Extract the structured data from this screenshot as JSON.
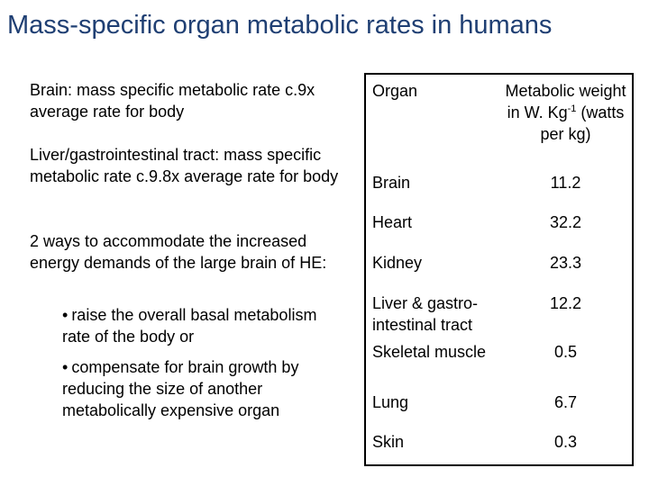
{
  "title": "Mass-specific organ metabolic rates in humans",
  "left": {
    "p1": "Brain: mass specific metabolic rate c.9x average rate for body",
    "p2": "Liver/gastrointestinal tract: mass specific metabolic rate c.9.8x average rate for body",
    "p3": "2 ways to accommodate the increased energy demands of the large brain of HE:",
    "bullets": [
      "raise the overall basal metabolism rate of the body or",
      "compensate for brain growth by reducing the size of another metabolically expensive organ"
    ],
    "bullet_glyph": "•"
  },
  "table": {
    "header_organ": "Organ",
    "header_value_a": "Metabolic weight in W. Kg",
    "header_value_sup": "-1",
    "header_value_b": " (watts per kg)",
    "rows": [
      {
        "organ": "Brain",
        "value": "11.2"
      },
      {
        "organ": "Heart",
        "value": "32.2"
      },
      {
        "organ": "Kidney",
        "value": "23.3"
      },
      {
        "organ": "Liver & gastro-intestinal tract",
        "value": "12.2"
      },
      {
        "organ": "Skeletal muscle",
        "value": "0.5"
      },
      {
        "organ": "Lung",
        "value": "6.7"
      },
      {
        "organ": "Skin",
        "value": "0.3"
      }
    ]
  }
}
